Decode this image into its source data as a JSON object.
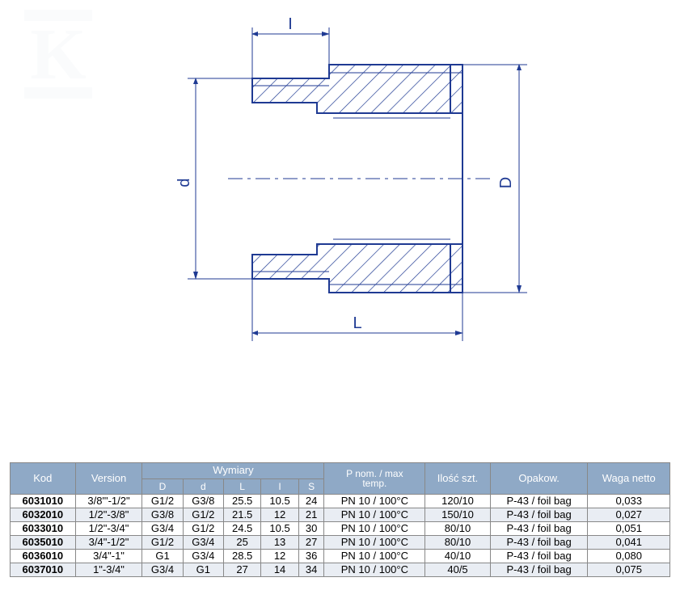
{
  "diagram": {
    "stroke": "#1f3a93",
    "hatch_stroke": "#1f3a93",
    "labels": {
      "I_top": "I",
      "d_left": "d",
      "D_right": "D",
      "L_bottom": "L"
    }
  },
  "watermark": {
    "letter": "K",
    "color": "#d9e2ec"
  },
  "table": {
    "headers": {
      "kod": "Kod",
      "version": "Version",
      "wymiary": "Wymiary",
      "pnom_line1": "P nom. / max",
      "pnom_line2": "temp.",
      "ilosc": "Ilość szt.",
      "opakow": "Opakow.",
      "waga": "Waga netto"
    },
    "sub": {
      "D": "D",
      "d": "d",
      "L": "L",
      "I": "I",
      "S": "S"
    },
    "rows": [
      {
        "kod": "6031010",
        "ver": "3/8\"'-1/2\"",
        "D": "G1/2",
        "d": "G3/8",
        "L": "25.5",
        "I": "10.5",
        "S": "24",
        "pn": "PN 10 / 100°C",
        "il": "120/10",
        "op": "P-43 / foil bag",
        "w": "0,033"
      },
      {
        "kod": "6032010",
        "ver": "1/2\"-3/8\"",
        "D": "G3/8",
        "d": "G1/2",
        "L": "21.5",
        "I": "12",
        "S": "21",
        "pn": "PN 10 / 100°C",
        "il": "150/10",
        "op": "P-43 / foil bag",
        "w": "0,027"
      },
      {
        "kod": "6033010",
        "ver": "1/2\"-3/4\"",
        "D": "G3/4",
        "d": "G1/2",
        "L": "24.5",
        "I": "10.5",
        "S": "30",
        "pn": "PN 10 / 100°C",
        "il": "80/10",
        "op": "P-43 / foil bag",
        "w": "0,051"
      },
      {
        "kod": "6035010",
        "ver": "3/4\"-1/2\"",
        "D": "G1/2",
        "d": "G3/4",
        "L": "25",
        "I": "13",
        "S": "27",
        "pn": "PN 10 / 100°C",
        "il": "80/10",
        "op": "P-43 / foil bag",
        "w": "0,041"
      },
      {
        "kod": "6036010",
        "ver": "3/4\"-1\"",
        "D": "G1",
        "d": "G3/4",
        "L": "28.5",
        "I": "12",
        "S": "36",
        "pn": "PN 10 / 100°C",
        "il": "40/10",
        "op": "P-43 / foil bag",
        "w": "0,080"
      },
      {
        "kod": "6037010",
        "ver": "1\"-3/4\"",
        "D": "G3/4",
        "d": "G1",
        "L": "27",
        "I": "14",
        "S": "34",
        "pn": "PN 10 / 100°C",
        "il": "40/5",
        "op": "P-43 / foil bag",
        "w": "0,075"
      }
    ]
  },
  "colors": {
    "header_bg": "#8fa9c6",
    "row_even_bg": "#e9edf3",
    "border": "#888888"
  }
}
